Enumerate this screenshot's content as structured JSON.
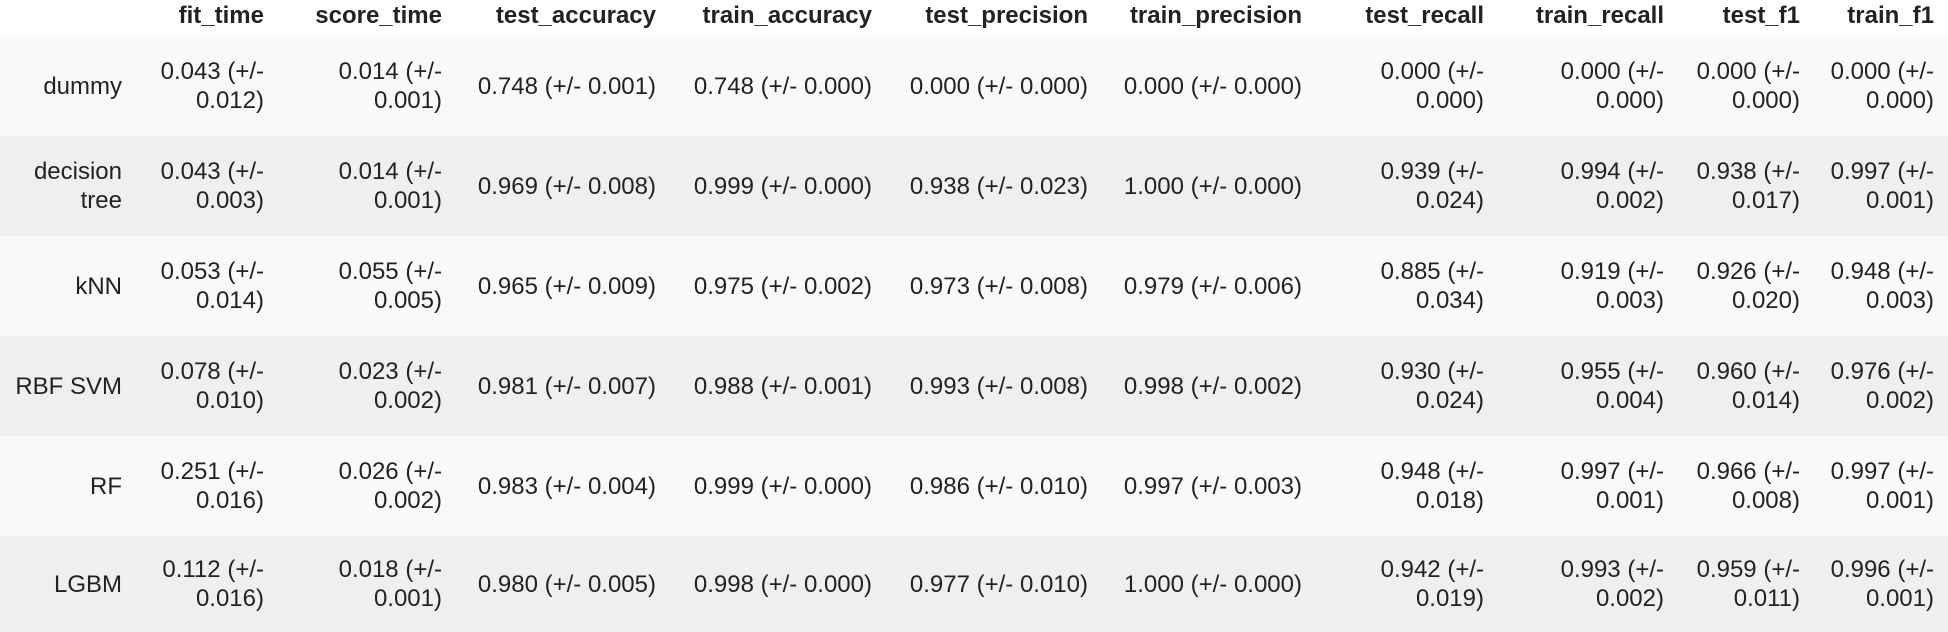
{
  "table": {
    "index_header": "",
    "columns": [
      "fit_time",
      "score_time",
      "test_accuracy",
      "train_accuracy",
      "test_precision",
      "train_precision",
      "test_recall",
      "train_recall",
      "test_f1",
      "train_f1"
    ],
    "rows": [
      {
        "index": "dummy",
        "cells": [
          "0.043 (+/- 0.012)",
          "0.014 (+/- 0.001)",
          "0.748 (+/- 0.001)",
          "0.748 (+/- 0.000)",
          "0.000 (+/- 0.000)",
          "0.000 (+/- 0.000)",
          "0.000 (+/- 0.000)",
          "0.000 (+/- 0.000)",
          "0.000 (+/- 0.000)",
          "0.000 (+/- 0.000)"
        ]
      },
      {
        "index": "decision tree",
        "cells": [
          "0.043 (+/- 0.003)",
          "0.014 (+/- 0.001)",
          "0.969 (+/- 0.008)",
          "0.999 (+/- 0.000)",
          "0.938 (+/- 0.023)",
          "1.000 (+/- 0.000)",
          "0.939 (+/- 0.024)",
          "0.994 (+/- 0.002)",
          "0.938 (+/- 0.017)",
          "0.997 (+/- 0.001)"
        ]
      },
      {
        "index": "kNN",
        "cells": [
          "0.053 (+/- 0.014)",
          "0.055 (+/- 0.005)",
          "0.965 (+/- 0.009)",
          "0.975 (+/- 0.002)",
          "0.973 (+/- 0.008)",
          "0.979 (+/- 0.006)",
          "0.885 (+/- 0.034)",
          "0.919 (+/- 0.003)",
          "0.926 (+/- 0.020)",
          "0.948 (+/- 0.003)"
        ]
      },
      {
        "index": "RBF SVM",
        "cells": [
          "0.078 (+/- 0.010)",
          "0.023 (+/- 0.002)",
          "0.981 (+/- 0.007)",
          "0.988 (+/- 0.001)",
          "0.993 (+/- 0.008)",
          "0.998 (+/- 0.002)",
          "0.930 (+/- 0.024)",
          "0.955 (+/- 0.004)",
          "0.960 (+/- 0.014)",
          "0.976 (+/- 0.002)"
        ]
      },
      {
        "index": "RF",
        "cells": [
          "0.251 (+/- 0.016)",
          "0.026 (+/- 0.002)",
          "0.983 (+/- 0.004)",
          "0.999 (+/- 0.000)",
          "0.986 (+/- 0.010)",
          "0.997 (+/- 0.003)",
          "0.948 (+/- 0.018)",
          "0.997 (+/- 0.001)",
          "0.966 (+/- 0.008)",
          "0.997 (+/- 0.001)"
        ]
      },
      {
        "index": "LGBM",
        "cells": [
          "0.112 (+/- 0.016)",
          "0.018 (+/- 0.001)",
          "0.980 (+/- 0.005)",
          "0.998 (+/- 0.000)",
          "0.977 (+/- 0.010)",
          "1.000 (+/- 0.000)",
          "0.942 (+/- 0.019)",
          "0.993 (+/- 0.002)",
          "0.959 (+/- 0.011)",
          "0.996 (+/- 0.001)"
        ]
      }
    ]
  },
  "colors": {
    "text": "#222222",
    "row_odd": "#f9f9f9",
    "row_even": "#efefef",
    "background": "#ffffff"
  }
}
